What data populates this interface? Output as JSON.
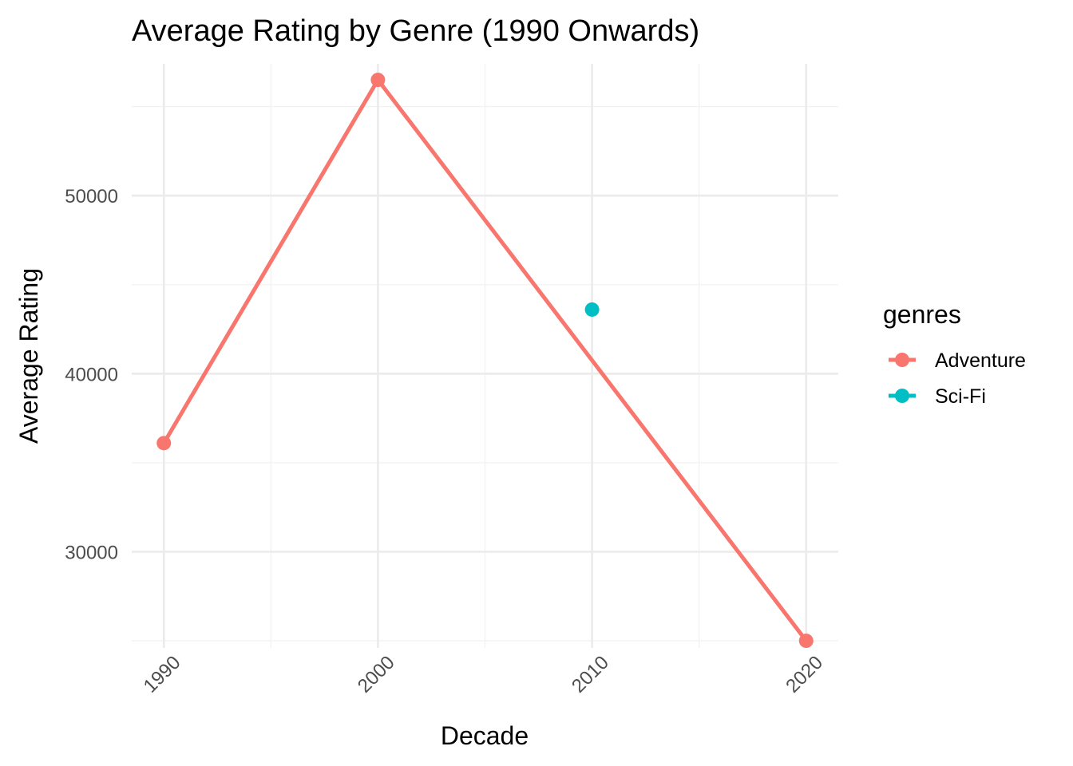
{
  "chart_data": {
    "type": "line",
    "title": "Average Rating by Genre (1990 Onwards)",
    "xlabel": "Decade",
    "ylabel": "Average Rating",
    "x_ticks": [
      "1990",
      "2000",
      "2010",
      "2020"
    ],
    "y_ticks": [
      "30000",
      "40000",
      "50000"
    ],
    "xlim": [
      1988.5,
      2021.5
    ],
    "ylim": [
      24600,
      57400
    ],
    "grid": true,
    "legend": {
      "title": "genres",
      "placement": "right"
    },
    "series": [
      {
        "name": "Adventure",
        "color": "#F8766D",
        "x": [
          1990,
          2000,
          2020
        ],
        "y": [
          36100,
          56500,
          25000
        ]
      },
      {
        "name": "Sci-Fi",
        "color": "#00BFC4",
        "x": [
          2010
        ],
        "y": [
          43600
        ]
      }
    ]
  }
}
